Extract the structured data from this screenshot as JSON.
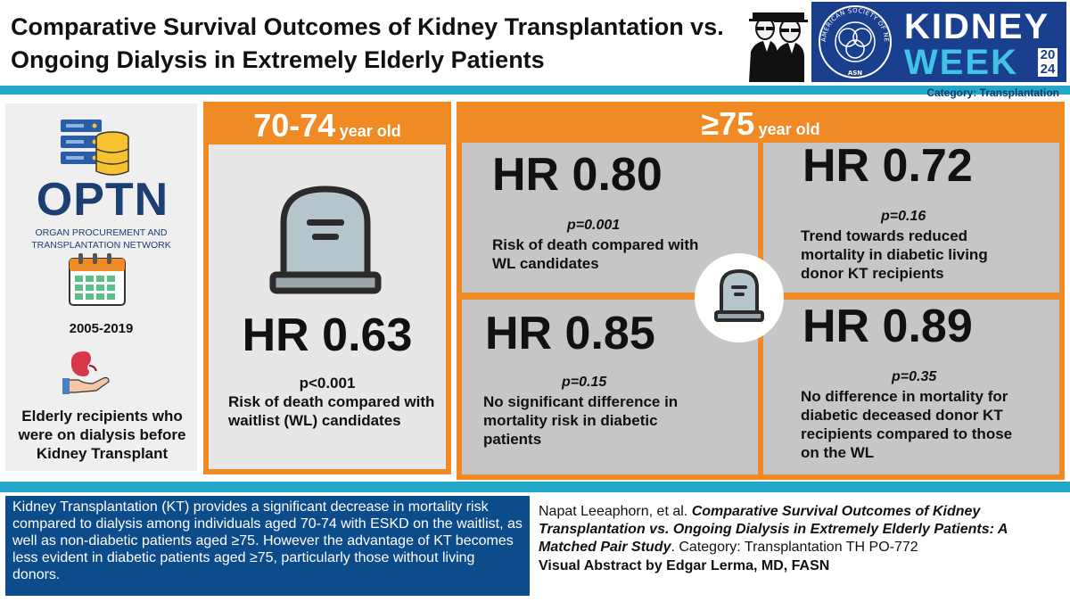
{
  "title": "Comparative Survival Outcomes of Kidney Transplantation vs. Ongoing Dialysis in Extremely Elderly Patients",
  "branding": {
    "society_arc": "AMERICAN SOCIETY OF NEPHROLOGY",
    "society_abbr": "ASN",
    "kw_line1": "KIDNEY",
    "kw_line2": "WEEK",
    "kw_year": "2024",
    "colors": {
      "navy": "#1a3f8f",
      "cyan": "#42c2e6",
      "orange": "#f08a24",
      "teal_bar": "#22a8c9"
    }
  },
  "category_tag": "Category: Transplantation",
  "left": {
    "source_name": "OPTN",
    "source_full": "ORGAN PROCUREMENT AND TRANSPLANTATION NETWORK",
    "years": "2005-2019",
    "population": "Elderly recipients who were on dialysis before Kidney Transplant",
    "icons": [
      "database-icon",
      "calendar-icon",
      "kidney-hand-icon"
    ]
  },
  "age_70_74": {
    "age_big": "70-74",
    "age_small": "year old",
    "hr": "HR 0.63",
    "p": "p<0.001",
    "desc": "Risk of death compared with waitlist (WL) candidates"
  },
  "age_75": {
    "age_big": "≥75",
    "age_small": "year old",
    "cells": [
      {
        "hr": "HR 0.80",
        "p": "p=0.001",
        "desc": "Risk of death compared with WL candidates"
      },
      {
        "hr": "HR 0.72",
        "p": "p=0.16",
        "desc": "Trend towards reduced mortality in diabetic living donor KT recipients"
      },
      {
        "hr": "HR 0.85",
        "p": "p=0.15",
        "desc": "No significant difference in mortality risk in diabetic patients"
      },
      {
        "hr": "HR 0.89",
        "p": "p=0.35",
        "desc": "No difference in mortality for diabetic deceased donor KT recipients compared to those on the WL"
      }
    ]
  },
  "summary": "Kidney Transplantation (KT) provides a significant decrease in mortality risk compared to dialysis among individuals aged 70-74 with ESKD on the waitlist, as well as non-diabetic patients aged ≥75. However the advantage of KT becomes less evident in diabetic patients aged ≥75, particularly those without living donors.",
  "citation": {
    "authors": "Napat Leeaphorn, et al. ",
    "paper_title": "Comparative Survival Outcomes of Kidney Transplantation vs. Ongoing Dialysis in Extremely Elderly Patients: A Matched Pair Study",
    "suffix": ". Category: Transplantation TH PO-772",
    "credit": "Visual Abstract by Edgar Lerma, MD, FASN"
  }
}
